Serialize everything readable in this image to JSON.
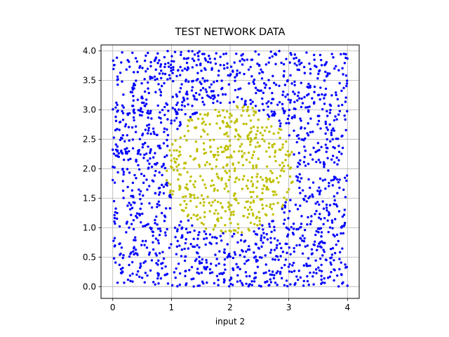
{
  "chart_data": {
    "type": "scatter",
    "title": "TEST NETWORK DATA",
    "xlabel": "input 2",
    "ylabel": "",
    "xlim": [
      -0.2,
      4.2
    ],
    "ylim": [
      -0.2,
      4.1
    ],
    "x_ticks": [
      "0",
      "1",
      "2",
      "3",
      "4"
    ],
    "y_ticks": [
      "0.0",
      "0.5",
      "1.0",
      "1.5",
      "2.0",
      "2.5",
      "3.0",
      "3.5",
      "4.0"
    ],
    "grid": true,
    "legend": "none",
    "domain": [
      0,
      4
    ],
    "region": {
      "shape": "circle",
      "center": [
        2,
        2
      ],
      "radius": 1.1
    },
    "point_count": 2000,
    "series": [
      {
        "class": "outside-circle",
        "color": "#0000ff"
      },
      {
        "class": "inside-circle",
        "color": "#bfbf00"
      }
    ]
  }
}
